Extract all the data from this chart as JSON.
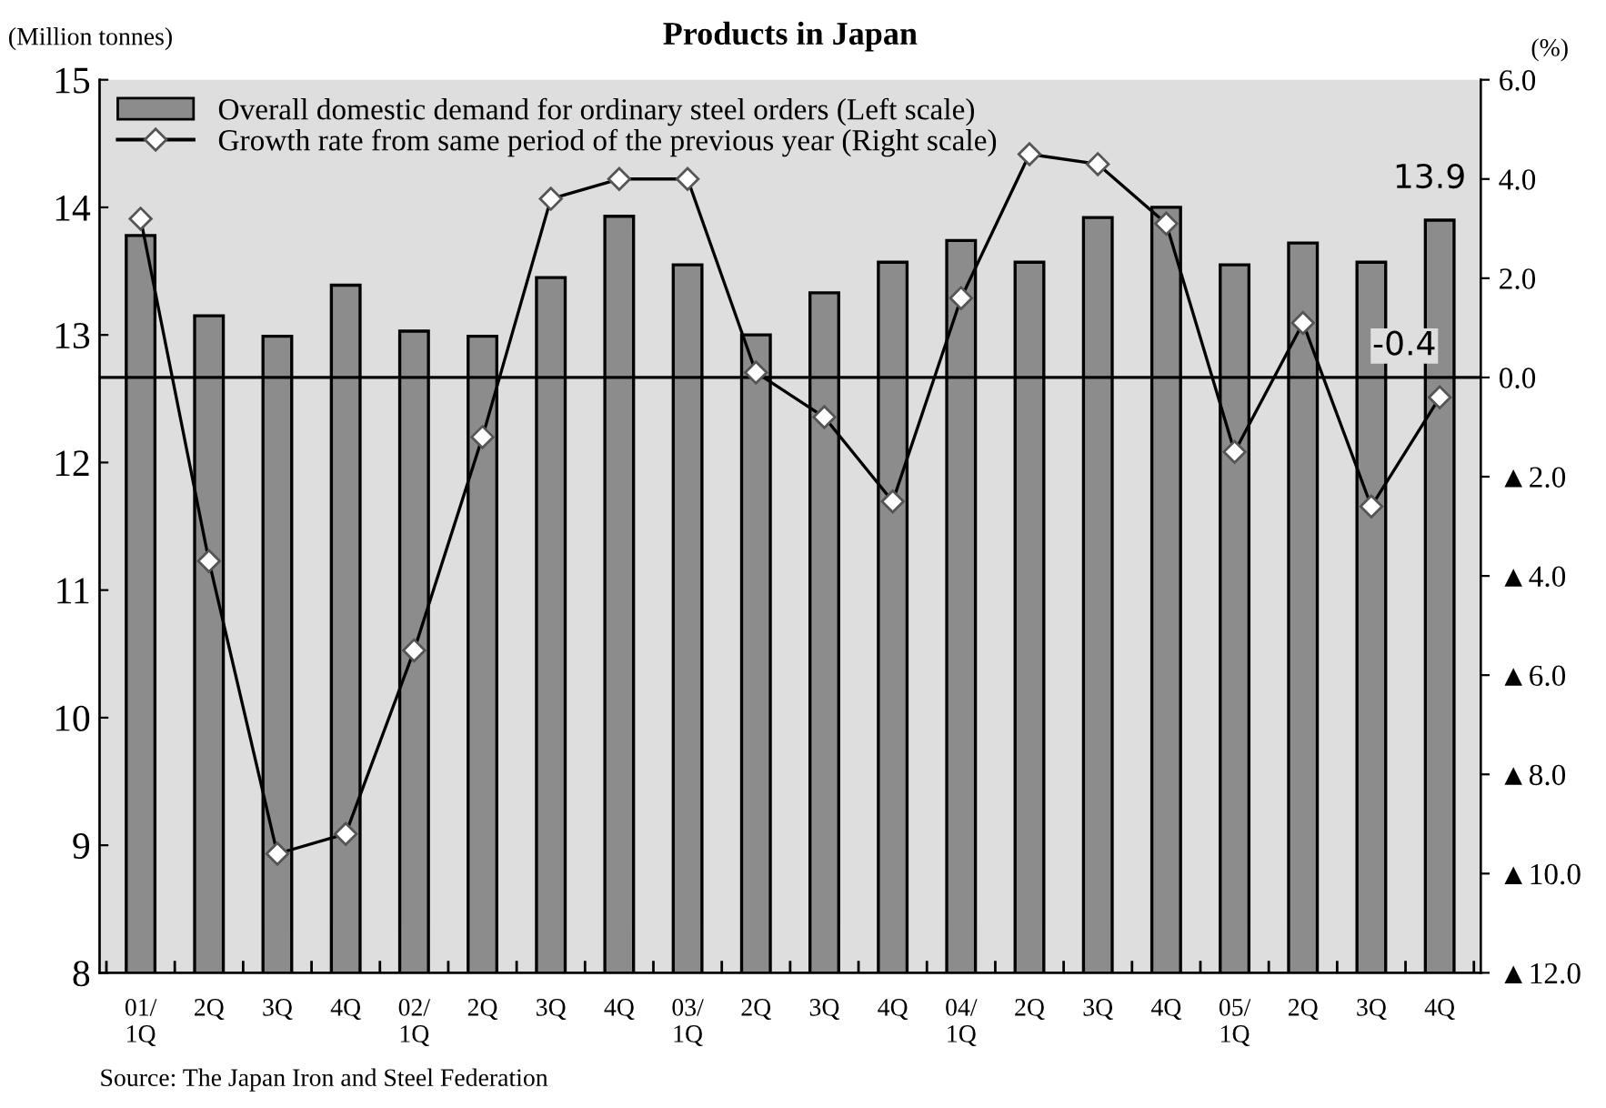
{
  "chart_data": {
    "type": "bar",
    "title": "Products in Japan",
    "ylabel": "(Million tonnes)",
    "y2label": "(%)",
    "categories": [
      "01/\n1Q",
      "2Q",
      "3Q",
      "4Q",
      "02/\n1Q",
      "2Q",
      "3Q",
      "4Q",
      "03/\n1Q",
      "2Q",
      "3Q",
      "4Q",
      "04/\n1Q",
      "2Q",
      "3Q",
      "4Q",
      "05/\n1Q",
      "2Q",
      "3Q",
      "4Q"
    ],
    "series": [
      {
        "name": "Overall domestic demand for ordinary steel orders (Left scale)",
        "color": "#8c8c8c",
        "values": [
          13.78,
          13.15,
          12.99,
          13.39,
          13.03,
          12.99,
          13.45,
          13.93,
          13.55,
          13.0,
          13.33,
          13.57,
          13.74,
          13.57,
          13.92,
          14.0,
          13.55,
          13.72,
          13.57,
          13.9
        ],
        "value_labels": [
          null,
          null,
          null,
          null,
          null,
          null,
          null,
          null,
          null,
          null,
          null,
          null,
          null,
          null,
          null,
          null,
          null,
          null,
          null,
          "13.9"
        ]
      },
      {
        "name": "Growth rate from same period of the previous year (Right scale)",
        "type": "line",
        "axis": "y2",
        "color": "#000000",
        "marker": "diamond",
        "values": [
          3.2,
          -3.7,
          -9.6,
          -9.2,
          -5.5,
          -1.2,
          3.6,
          4.0,
          4.0,
          0.1,
          -0.8,
          -2.5,
          1.6,
          4.5,
          4.3,
          3.1,
          -1.5,
          1.1,
          -2.6,
          -0.4
        ],
        "value_labels": [
          null,
          null,
          null,
          null,
          null,
          null,
          null,
          null,
          null,
          null,
          null,
          null,
          null,
          null,
          null,
          null,
          null,
          null,
          null,
          "-0.4"
        ]
      }
    ],
    "ylim": [
      8,
      15
    ],
    "yticks": [
      8,
      9,
      10,
      11,
      12,
      13,
      14,
      15
    ],
    "y2lim": [
      -12,
      6
    ],
    "y2ticks": [
      {
        "value": -12,
        "label": "▲12.0"
      },
      {
        "value": -10,
        "label": "▲10.0"
      },
      {
        "value": -8,
        "label": "▲8.0"
      },
      {
        "value": -6,
        "label": "▲6.0"
      },
      {
        "value": -4,
        "label": "▲4.0"
      },
      {
        "value": -2,
        "label": "▲2.0"
      },
      {
        "value": 0,
        "label": "0.0"
      },
      {
        "value": 2,
        "label": "2.0"
      },
      {
        "value": 4,
        "label": "4.0"
      },
      {
        "value": 6,
        "label": "6.0"
      }
    ],
    "ref_lines": [
      {
        "axis": "y2",
        "value": 0,
        "color": "#000000"
      }
    ],
    "legend": "top left",
    "grid": false,
    "annotations": [
      "Source: The Japan Iron and Steel Federation"
    ]
  }
}
